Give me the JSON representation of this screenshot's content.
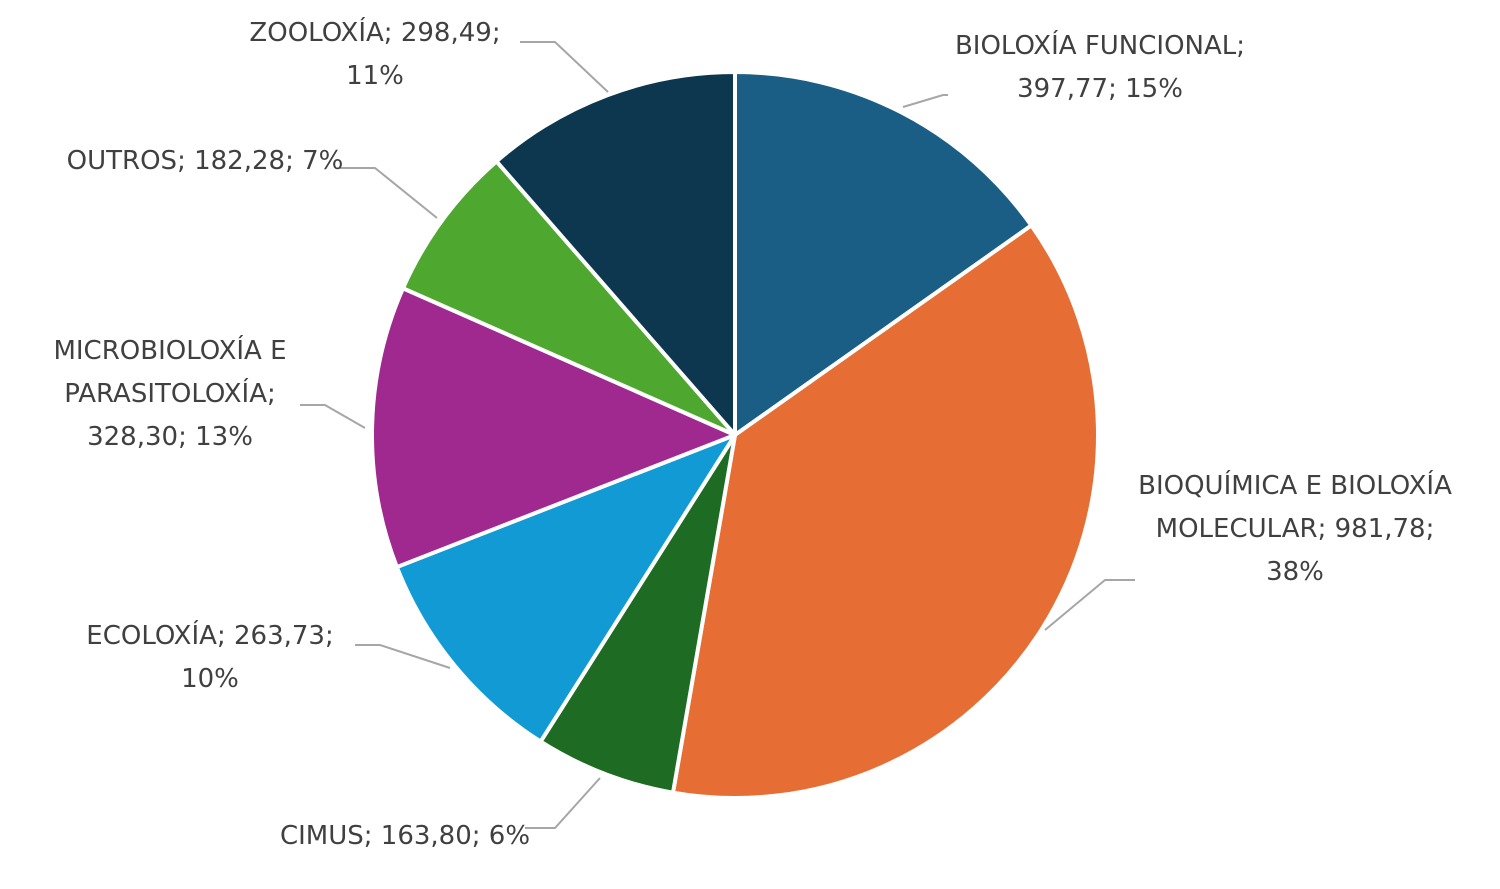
{
  "chart_data": {
    "type": "pie",
    "categories": [
      "BIOLOXÍA FUNCIONAL",
      "BIOQUÍMICA E BIOLOXÍA MOLECULAR",
      "CIMUS",
      "ECOLOXÍA",
      "MICROBIOLOXÍA E PARASITOLOXÍA",
      "OUTROS",
      "ZOOLOXÍA"
    ],
    "values": [
      397.77,
      981.78,
      163.8,
      263.73,
      328.3,
      182.28,
      298.49
    ],
    "value_labels": [
      "397,77",
      "981,78",
      "163,80",
      "263,73",
      "328,30",
      "182,28",
      "298,49"
    ],
    "percents": [
      15,
      38,
      6,
      10,
      13,
      7,
      11
    ],
    "percent_labels": [
      "15%",
      "38%",
      "6%",
      "10%",
      "13%",
      "7%",
      "11%"
    ],
    "label_separator": ";",
    "colors": [
      "#1a5e85",
      "#e66e34",
      "#1e6b23",
      "#119ad3",
      "#a0298f",
      "#4ea72e",
      "#0c374f"
    ]
  }
}
